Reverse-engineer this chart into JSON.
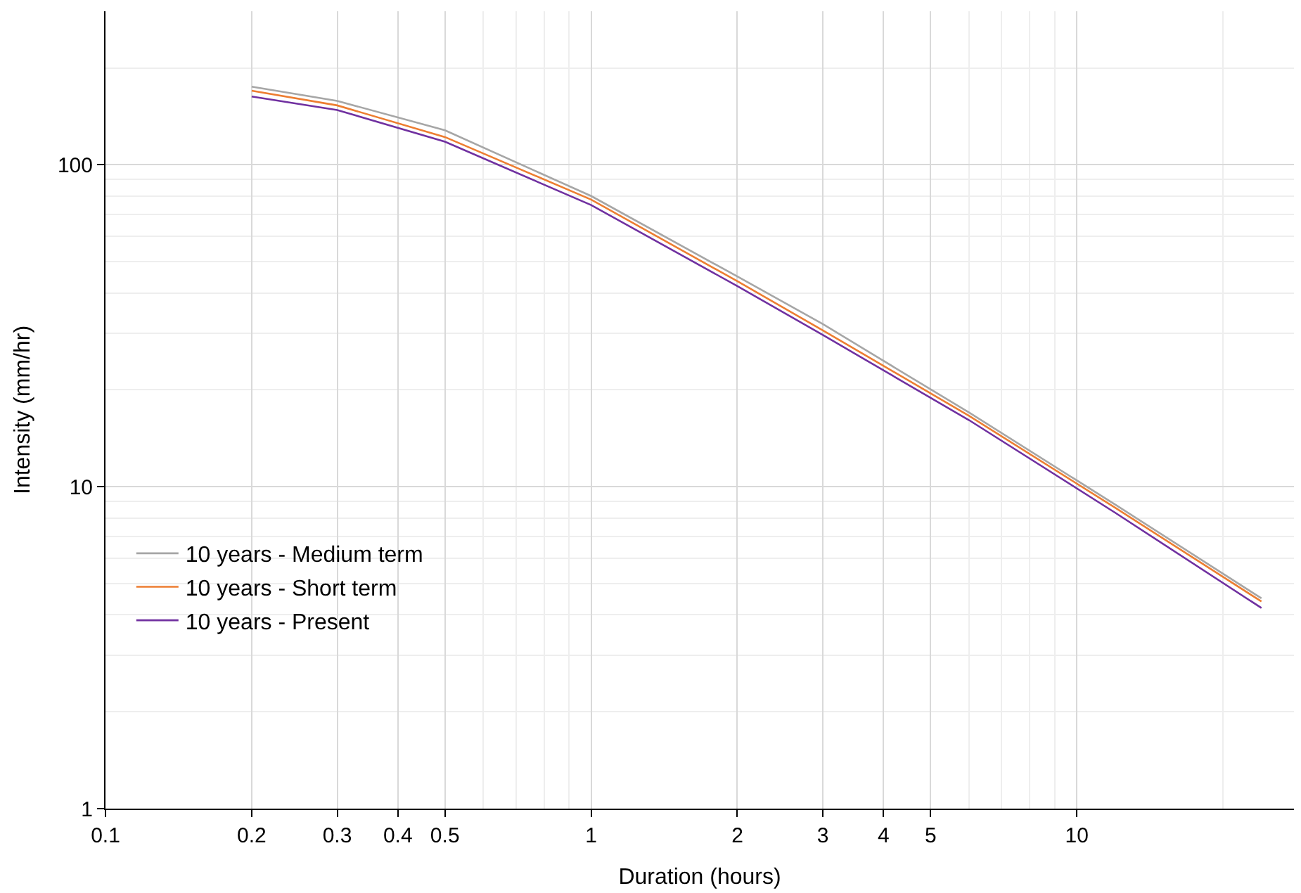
{
  "chart_data": {
    "type": "line",
    "xlabel": "Duration (hours)",
    "ylabel": "Intensity (mm/hr)",
    "x": [
      0.2,
      0.3,
      0.5,
      1,
      2,
      3,
      6,
      12,
      24
    ],
    "series": [
      {
        "name": "10 years - Medium term",
        "color": "#a6a6a6",
        "values": [
          175,
          158,
          128,
          80,
          45,
          32,
          17,
          8.8,
          4.5
        ]
      },
      {
        "name": "10 years - Short term",
        "color": "#ed7d31",
        "values": [
          170,
          153,
          122,
          78,
          43.5,
          30.6,
          16.6,
          8.6,
          4.4
        ]
      },
      {
        "name": "10 years - Present",
        "color": "#7030a0",
        "values": [
          163,
          148,
          118,
          75,
          42,
          29.6,
          16.1,
          8.3,
          4.2
        ]
      }
    ],
    "log": "xy",
    "xlim": [
      0.1,
      28
    ],
    "ylim": [
      1,
      300
    ],
    "xticks": [
      0.1,
      0.2,
      0.3,
      0.4,
      0.5,
      1,
      2,
      3,
      4,
      5,
      10
    ],
    "yticks": [
      1,
      10,
      100
    ],
    "grid": true,
    "legend": "bottom left",
    "marker": "none",
    "line_style": "solid"
  }
}
